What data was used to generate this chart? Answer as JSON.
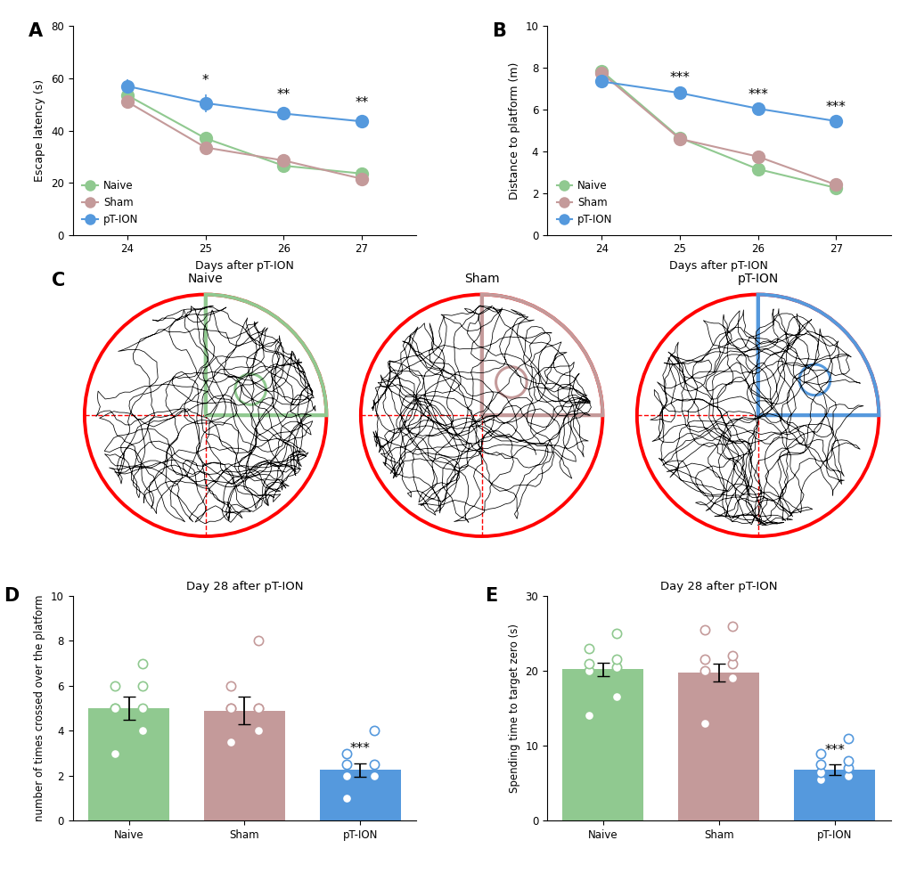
{
  "panel_A": {
    "days": [
      24,
      25,
      26,
      27
    ],
    "naive_mean": [
      53.5,
      37.0,
      26.5,
      23.5
    ],
    "naive_err": [
      1.5,
      2.0,
      1.5,
      1.5
    ],
    "sham_mean": [
      51.0,
      33.5,
      28.5,
      21.5
    ],
    "sham_err": [
      2.0,
      2.0,
      1.5,
      1.5
    ],
    "pTION_mean": [
      57.0,
      50.5,
      46.5,
      43.5
    ],
    "pTION_err": [
      2.5,
      3.5,
      2.0,
      2.0
    ],
    "ylabel": "Escape latency (s)",
    "xlabel": "Days after pT-ION",
    "ylim": [
      0,
      80
    ],
    "yticks": [
      0,
      20,
      40,
      60,
      80
    ],
    "sig_labels": [
      "*",
      "**",
      "**"
    ],
    "sig_days": [
      25,
      26,
      27
    ],
    "label": "A"
  },
  "panel_B": {
    "days": [
      24,
      25,
      26,
      27
    ],
    "naive_mean": [
      7.85,
      4.65,
      3.15,
      2.25
    ],
    "naive_err": [
      0.15,
      0.15,
      0.15,
      0.1
    ],
    "sham_mean": [
      7.75,
      4.6,
      3.75,
      2.4
    ],
    "sham_err": [
      0.15,
      0.2,
      0.2,
      0.15
    ],
    "pTION_mean": [
      7.35,
      6.8,
      6.05,
      5.45
    ],
    "pTION_err": [
      0.2,
      0.2,
      0.15,
      0.15
    ],
    "ylabel": "Distance to platform (m)",
    "xlabel": "Days after pT-ION",
    "ylim": [
      0,
      10
    ],
    "yticks": [
      0,
      2,
      4,
      6,
      8,
      10
    ],
    "sig_labels": [
      "***",
      "***",
      "***"
    ],
    "sig_days": [
      25,
      26,
      27
    ],
    "label": "B"
  },
  "panel_C": {
    "label": "C",
    "titles": [
      "Naive",
      "Sham",
      "pT-ION"
    ],
    "zone_colors": [
      "#90c990",
      "#c49a9a",
      "#5599dd"
    ]
  },
  "panel_D": {
    "label": "D",
    "title": "Day 28 after pT-ION",
    "categories": [
      "Naive",
      "Sham",
      "pT-ION"
    ],
    "means": [
      5.0,
      4.9,
      2.25
    ],
    "errors": [
      0.5,
      0.6,
      0.3
    ],
    "bar_colors": [
      "#90c990",
      "#c49a9a",
      "#5599dd"
    ],
    "scatter_naive": [
      3.0,
      5.0,
      5.0,
      6.0,
      6.0,
      4.0,
      5.0,
      7.0
    ],
    "scatter_sham": [
      3.5,
      5.0,
      5.0,
      5.0,
      6.0,
      4.0,
      5.0,
      8.0
    ],
    "scatter_pTION": [
      2.0,
      2.0,
      3.0,
      1.0,
      2.0,
      2.5,
      2.5,
      4.0
    ],
    "ylabel": "number of times crossed over the platform",
    "ylim": [
      0,
      10
    ],
    "yticks": [
      0,
      2,
      4,
      6,
      8,
      10
    ],
    "sig_label": "***"
  },
  "panel_E": {
    "label": "E",
    "title": "Day 28 after pT-ION",
    "categories": [
      "Naive",
      "Sham",
      "pT-ION"
    ],
    "means": [
      20.2,
      19.8,
      6.8
    ],
    "errors": [
      0.9,
      1.2,
      0.7
    ],
    "bar_colors": [
      "#90c990",
      "#c49a9a",
      "#5599dd"
    ],
    "scatter_naive": [
      14.0,
      16.5,
      20.0,
      20.5,
      21.0,
      21.5,
      23.0,
      25.0
    ],
    "scatter_sham": [
      13.0,
      19.0,
      20.0,
      21.0,
      21.5,
      22.0,
      25.5,
      26.0
    ],
    "scatter_pTION": [
      5.5,
      6.5,
      7.0,
      7.5,
      8.0,
      9.0,
      11.0,
      6.0
    ],
    "ylabel": "Spending time to target zero (s)",
    "ylim": [
      0,
      30
    ],
    "yticks": [
      0,
      10,
      20,
      30
    ],
    "sig_label": "***"
  },
  "colors": {
    "naive": "#90c990",
    "sham": "#c49a9a",
    "pTION": "#5599dd"
  }
}
